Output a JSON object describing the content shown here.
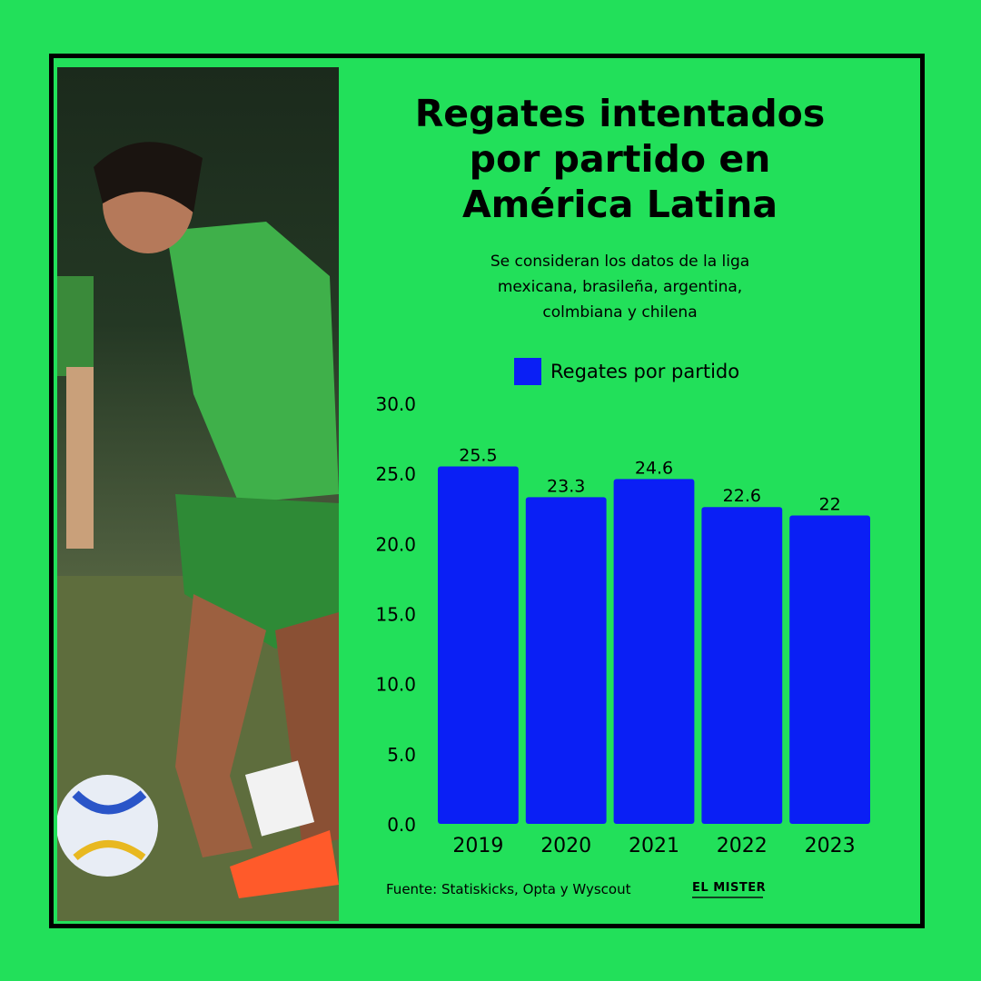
{
  "title_line1": "Regates intentados",
  "title_line2": "por partido en",
  "title_line3": "América Latina",
  "subtitle_line1": "Se consideran los datos de la liga",
  "subtitle_line2": "mexicana, brasileña, argentina,",
  "subtitle_line3": "colmbiana y chilena",
  "source": "Fuente: Statiskicks, Opta y Wyscout",
  "logo": "EL MISTER",
  "colors": {
    "background": "#22e05a",
    "bar": "#0a1ff5",
    "frame": "#000000"
  },
  "chart_data": {
    "type": "bar",
    "categories": [
      "2019",
      "2020",
      "2021",
      "2022",
      "2023"
    ],
    "series": [
      {
        "name": "Regates por partido",
        "values": [
          25.5,
          23.3,
          24.6,
          22.6,
          22
        ]
      }
    ],
    "data_labels": [
      "25.5",
      "23.3",
      "24.6",
      "22.6",
      "22"
    ],
    "y_ticks": [
      "0.0",
      "5.0",
      "10.0",
      "15.0",
      "20.0",
      "25.0",
      "30.0"
    ],
    "ylim": [
      0,
      30
    ],
    "grid": false,
    "legend_position": "top"
  }
}
